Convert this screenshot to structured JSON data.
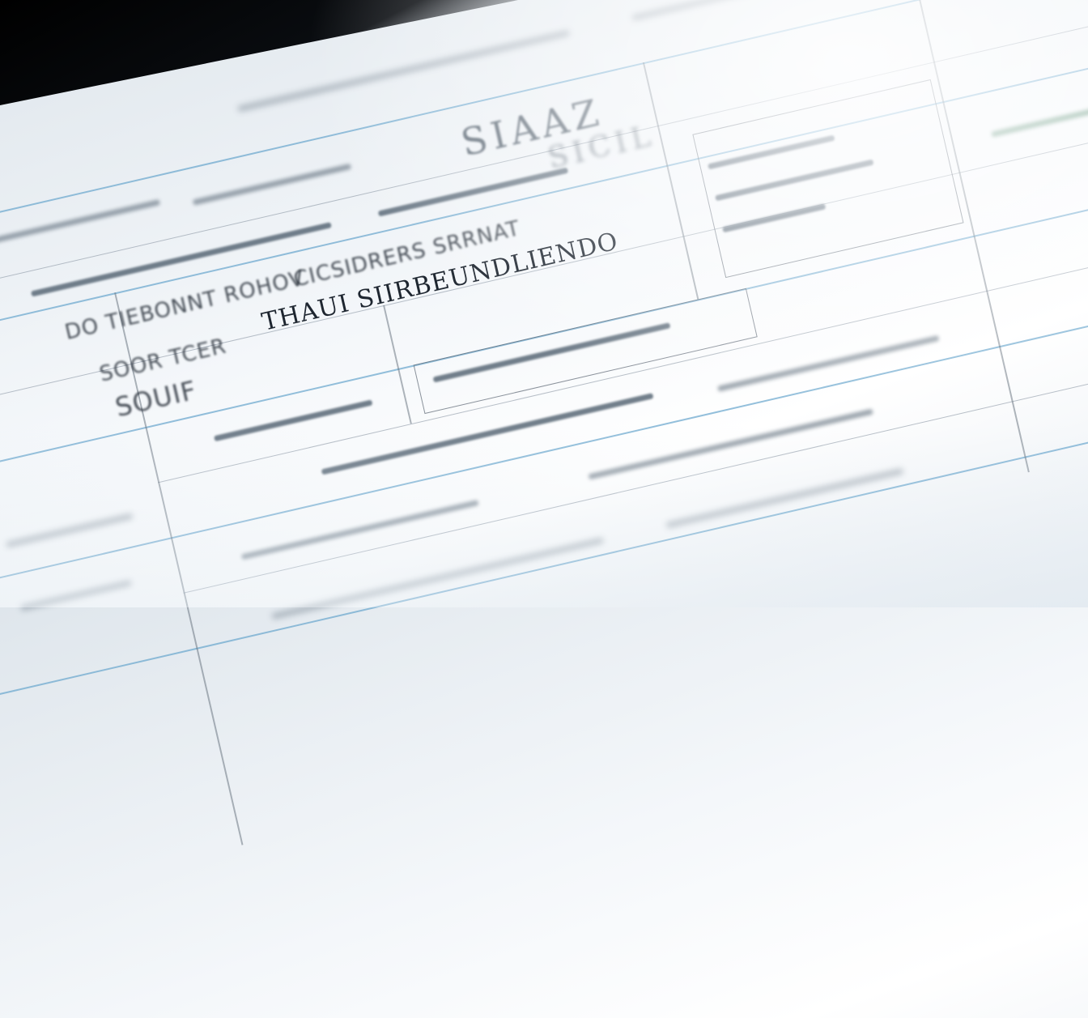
{
  "document": {
    "heading": "SIAAZ",
    "subheading": "SICIL",
    "line1": "DO TIEBONNT ROHOV",
    "line2": "CICSIDRERS SRRNAT",
    "line3": "THAUI SIIRBEUNDLIENDO",
    "line4": "SOOR TCER",
    "line5": "SOUIF",
    "accent_color": "#6fa9cf",
    "background_color": "#000000"
  }
}
